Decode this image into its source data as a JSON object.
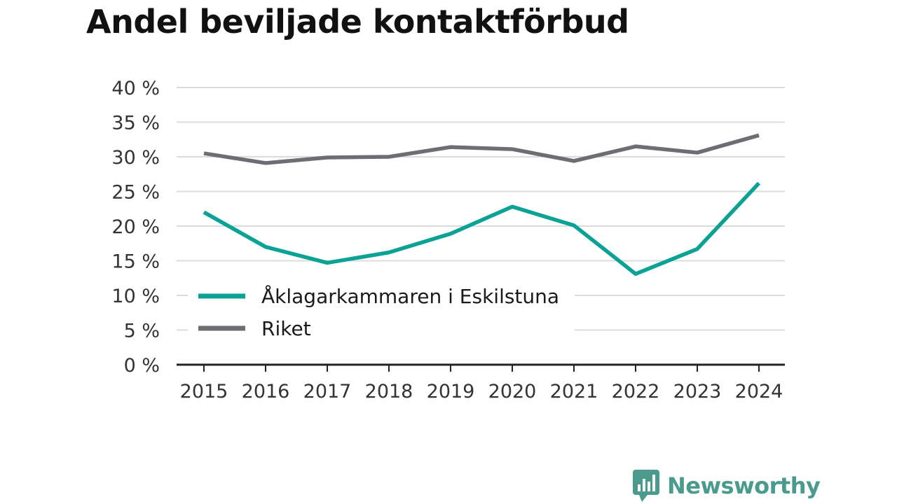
{
  "chart_data": {
    "type": "line",
    "title": "Andel beviljade kontaktförbud",
    "xlabel": "",
    "ylabel": "",
    "x": [
      "2015",
      "2016",
      "2017",
      "2018",
      "2019",
      "2020",
      "2021",
      "2022",
      "2023",
      "2024"
    ],
    "series": [
      {
        "name": "Åklagarkammaren i Eskilstuna",
        "color": "#0aa295",
        "values": [
          22.0,
          17.0,
          14.7,
          16.2,
          18.9,
          22.8,
          20.1,
          13.1,
          16.7,
          26.2
        ]
      },
      {
        "name": "Riket",
        "color": "#6e6d73",
        "values": [
          30.5,
          29.1,
          29.9,
          30.0,
          31.4,
          31.1,
          29.4,
          31.5,
          30.6,
          33.1
        ]
      }
    ],
    "ylim": [
      0,
      40
    ],
    "yticks": [
      0,
      5,
      10,
      15,
      20,
      25,
      30,
      35,
      40
    ],
    "ytick_labels": [
      "0 %",
      "5 %",
      "10 %",
      "15 %",
      "20 %",
      "25 %",
      "30 %",
      "35 %",
      "40 %"
    ],
    "grid": true,
    "legend_position": "bottom-left"
  },
  "brand": {
    "name": "Newsworthy",
    "icon": "newsworthy-logo-icon",
    "color": "#4a9a8e"
  }
}
